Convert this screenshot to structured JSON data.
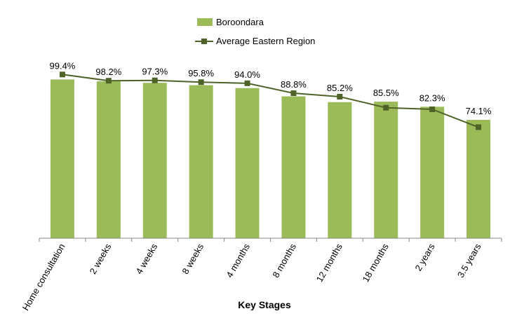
{
  "chart_data": {
    "type": "bar",
    "categories": [
      "Home consultation",
      "2 weeks",
      "4 weeks",
      "8 weeks",
      "4 months",
      "8 months",
      "12 months",
      "18 months",
      "2 years",
      "3.5 years"
    ],
    "series": [
      {
        "name": "Boroondara",
        "kind": "bar",
        "color": "#9BBB59",
        "values": [
          99.4,
          98.2,
          97.3,
          95.8,
          94.0,
          88.8,
          85.2,
          85.5,
          82.3,
          74.1
        ],
        "labels": [
          "99.4%",
          "98.2%",
          "97.3%",
          "95.8%",
          "94.0%",
          "88.8%",
          "85.2%",
          "85.5%",
          "82.3%",
          "74.1%"
        ]
      },
      {
        "name": "Average Eastern Region",
        "kind": "line",
        "color": "#4F6228",
        "values": [
          102.5,
          98.6,
          98.8,
          97.7,
          97.0,
          90.8,
          88.6,
          81.7,
          80.7,
          69.5
        ]
      }
    ],
    "xlabel": "Key Stages",
    "ylabel": "",
    "ylim": [
      0,
      100
    ],
    "grid": false,
    "legend_position": "top"
  }
}
